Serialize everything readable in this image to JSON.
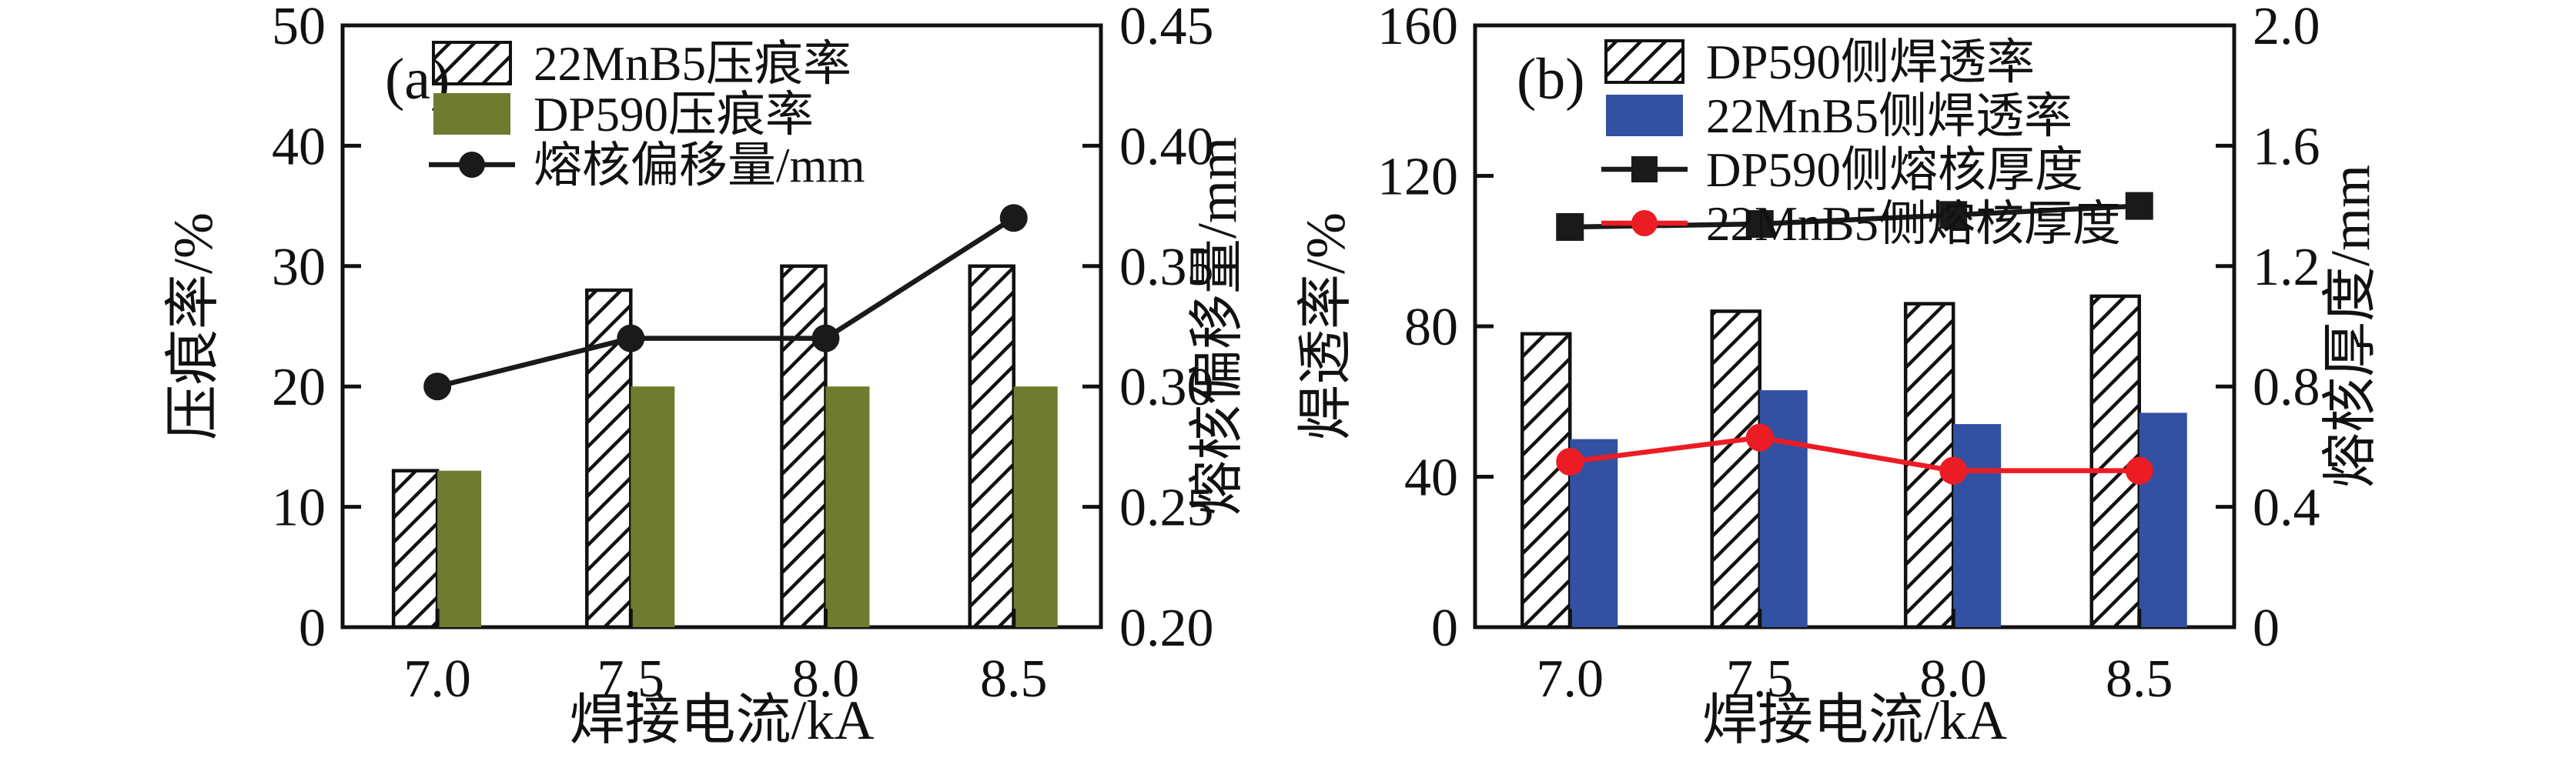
{
  "figure": {
    "panels": [
      "(a)",
      "(b)"
    ]
  },
  "chart_data": [
    {
      "panel_label": "(a)",
      "type": "bar+line",
      "categories": [
        "7.0",
        "7.5",
        "8.0",
        "8.5"
      ],
      "xlabel": "焊接电流/kA",
      "left_axis": {
        "title": "压痕率/%",
        "min": 0,
        "max": 50,
        "ticks": [
          {
            "v": 0,
            "label": "0"
          },
          {
            "v": 10,
            "label": "10"
          },
          {
            "v": 20,
            "label": "20"
          },
          {
            "v": 30,
            "label": "30"
          },
          {
            "v": 40,
            "label": "40"
          },
          {
            "v": 50,
            "label": "50"
          }
        ]
      },
      "right_axis": {
        "title": "熔核偏移量/mm",
        "min": 0.2,
        "max": 0.45,
        "ticks": [
          {
            "v": 0.2,
            "label": "0.20"
          },
          {
            "v": 0.25,
            "label": "0.25"
          },
          {
            "v": 0.3,
            "label": "0.30"
          },
          {
            "v": 0.35,
            "label": "0.35"
          },
          {
            "v": 0.4,
            "label": "0.40"
          },
          {
            "v": 0.45,
            "label": "0.45"
          }
        ]
      },
      "bar_series": [
        {
          "name": "22MnB5压痕率",
          "style": "hatch",
          "color": "#ffffff",
          "values": [
            13,
            28,
            30,
            30
          ]
        },
        {
          "name": "DP590压痕率",
          "style": "fill",
          "color": "#6f7b2e",
          "values": [
            13,
            20,
            20,
            20
          ]
        }
      ],
      "line_series": [
        {
          "name": "熔核偏移量/mm",
          "axis": "right",
          "color": "#1a1a1a",
          "marker": "circle",
          "values": [
            0.3,
            0.32,
            0.32,
            0.37
          ]
        }
      ]
    },
    {
      "panel_label": "(b)",
      "type": "bar+line",
      "categories": [
        "7.0",
        "7.5",
        "8.0",
        "8.5"
      ],
      "xlabel": "焊接电流/kA",
      "left_axis": {
        "title": "焊透率/%",
        "min": 0,
        "max": 160,
        "ticks": [
          {
            "v": 0,
            "label": "0"
          },
          {
            "v": 40,
            "label": "40"
          },
          {
            "v": 80,
            "label": "80"
          },
          {
            "v": 120,
            "label": "120"
          },
          {
            "v": 160,
            "label": "160"
          }
        ]
      },
      "right_axis": {
        "title": "熔核厚度/mm",
        "min": 0,
        "max": 2.0,
        "ticks": [
          {
            "v": 0,
            "label": "0"
          },
          {
            "v": 0.4,
            "label": "0.4"
          },
          {
            "v": 0.8,
            "label": "0.8"
          },
          {
            "v": 1.2,
            "label": "1.2"
          },
          {
            "v": 1.6,
            "label": "1.6"
          },
          {
            "v": 2.0,
            "label": "2.0"
          }
        ]
      },
      "bar_series": [
        {
          "name": "DP590侧焊透率",
          "style": "hatch",
          "color": "#ffffff",
          "values": [
            78,
            84,
            86,
            88
          ]
        },
        {
          "name": "22MnB5侧焊透率",
          "style": "fill",
          "color": "#3351a2",
          "values": [
            50,
            63,
            54,
            57
          ]
        }
      ],
      "line_series": [
        {
          "name": "DP590侧熔核厚度",
          "axis": "right",
          "color": "#1a1a1a",
          "marker": "square",
          "values": [
            1.33,
            1.34,
            1.37,
            1.4
          ]
        },
        {
          "name": "22MnB5侧熔核厚度",
          "axis": "right",
          "color": "#ec1c24",
          "marker": "circle",
          "values": [
            0.55,
            0.63,
            0.52,
            0.52
          ]
        }
      ]
    }
  ]
}
